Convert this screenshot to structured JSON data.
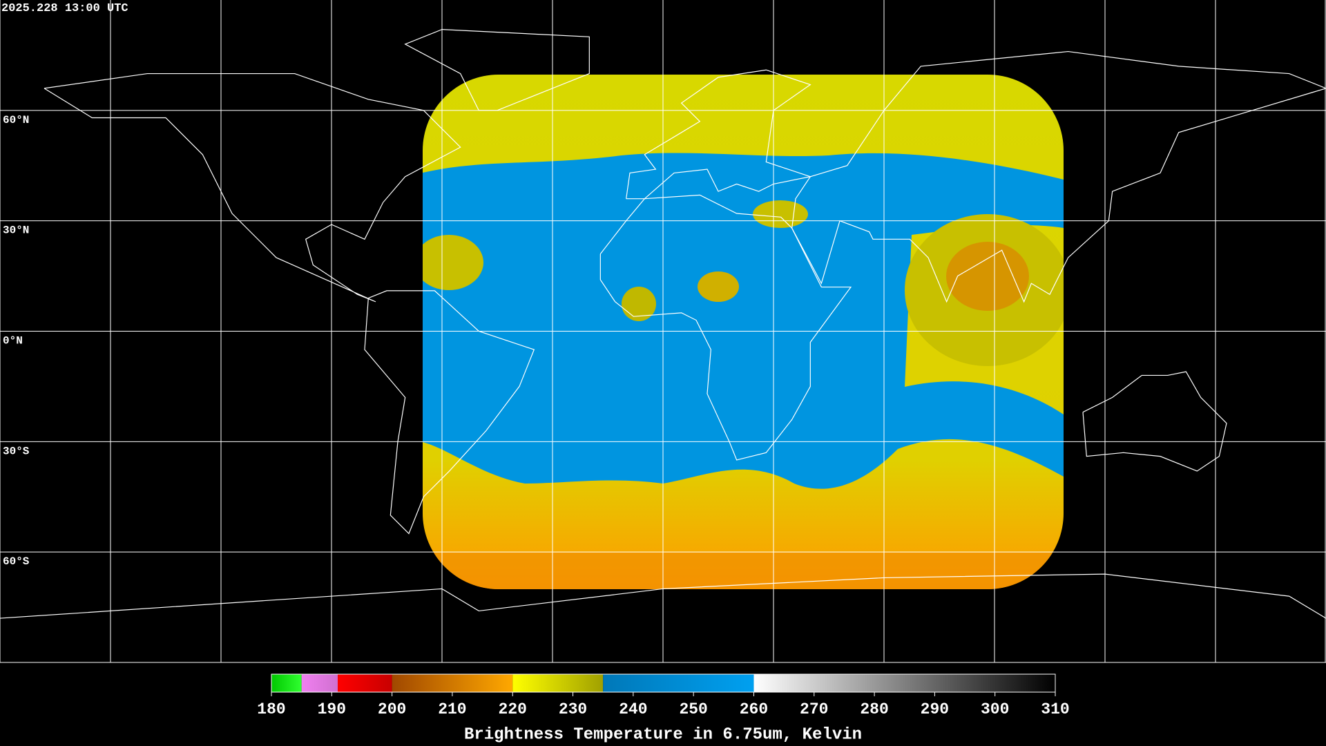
{
  "header": {
    "timestamp": "2025.228 13:00 UTC"
  },
  "map": {
    "latitudes": [
      {
        "value": 60,
        "label": "60°N"
      },
      {
        "value": 30,
        "label": "30°N"
      },
      {
        "value": 0,
        "label": "0°N"
      },
      {
        "value": -30,
        "label": "30°S"
      },
      {
        "value": -60,
        "label": "60°S"
      }
    ]
  },
  "colorbar": {
    "title": "Brightness Temperature in 6.75um, Kelvin",
    "range": [
      180,
      310
    ],
    "ticks": [
      180,
      190,
      200,
      210,
      220,
      230,
      240,
      250,
      260,
      270,
      280,
      290,
      300,
      310
    ],
    "segments": [
      {
        "from": 180,
        "to": 185,
        "colors": [
          "#00c800",
          "#30ff30"
        ]
      },
      {
        "from": 185,
        "to": 191,
        "colors": [
          "#f080f0",
          "#d070d0"
        ]
      },
      {
        "from": 191,
        "to": 200,
        "colors": [
          "#ff0000",
          "#c80000"
        ]
      },
      {
        "from": 200,
        "to": 220,
        "colors": [
          "#a04800",
          "#ffa800"
        ]
      },
      {
        "from": 220,
        "to": 235,
        "colors": [
          "#ffff00",
          "#a0a000"
        ]
      },
      {
        "from": 235,
        "to": 260,
        "colors": [
          "#0078b8",
          "#00a0f0"
        ]
      },
      {
        "from": 260,
        "to": 310,
        "colors": [
          "#ffffff",
          "#000000"
        ]
      }
    ]
  }
}
